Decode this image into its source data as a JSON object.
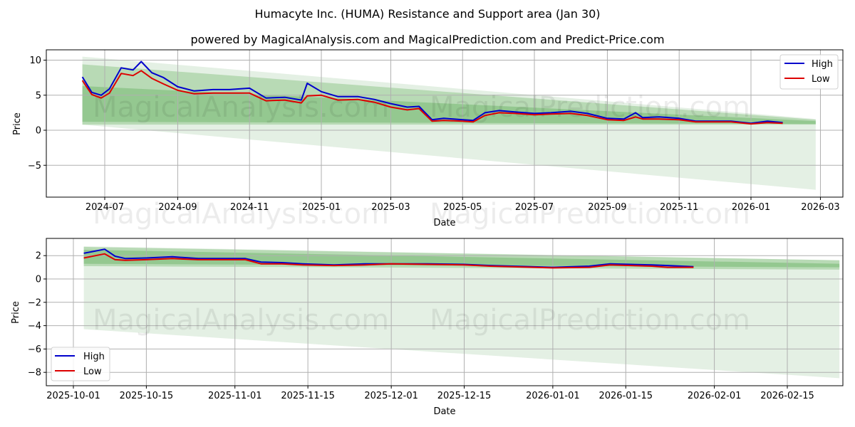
{
  "header": {
    "title": "Humacyte Inc. (HUMA) Resistance and Support area (Jan 30)",
    "subtitle": "powered by MagicalAnalysis.com and MagicalPrediction.com and Predict-Price.com"
  },
  "watermarks": [
    "MagicalAnalysis.com",
    "MagicalPrediction.com"
  ],
  "colors": {
    "high": "#0000cc",
    "low": "#dd0000",
    "band_light": "#e3efe3",
    "band_mid": "#a9d3a6",
    "band_dark": "#7bbd78",
    "grid": "#b0b0b0"
  },
  "chart_data": [
    {
      "type": "line",
      "title": "Humacyte Inc. (HUMA) Resistance and Support area (Jan 30)",
      "subtitle": "powered by MagicalAnalysis.com and MagicalPrediction.com and Predict-Price.com",
      "xlabel": "Date",
      "ylabel": "Price",
      "ylim": [
        -9.5,
        11.5
      ],
      "yticks": [
        10,
        5,
        0,
        -5
      ],
      "ytick_labels": [
        "10",
        "5",
        "0",
        "−5"
      ],
      "xticks": [
        "2024-07",
        "2024-09",
        "2024-11",
        "2025-01",
        "2025-03",
        "2025-05",
        "2025-07",
        "2025-09",
        "2025-11",
        "2026-01",
        "2026-03"
      ],
      "grid": true,
      "legend": {
        "position": "upper right",
        "entries": [
          "High",
          "Low"
        ]
      },
      "x": [
        "2024-06-12",
        "2024-06-20",
        "2024-06-28",
        "2024-07-05",
        "2024-07-15",
        "2024-07-25",
        "2024-08-01",
        "2024-08-10",
        "2024-08-20",
        "2024-09-01",
        "2024-09-15",
        "2024-10-01",
        "2024-10-15",
        "2024-11-01",
        "2024-11-15",
        "2024-12-01",
        "2024-12-15",
        "2024-12-20",
        "2025-01-01",
        "2025-01-15",
        "2025-02-01",
        "2025-02-15",
        "2025-03-01",
        "2025-03-15",
        "2025-03-25",
        "2025-04-05",
        "2025-04-15",
        "2025-05-01",
        "2025-05-10",
        "2025-05-20",
        "2025-06-01",
        "2025-06-15",
        "2025-07-01",
        "2025-07-15",
        "2025-08-01",
        "2025-08-15",
        "2025-09-01",
        "2025-09-15",
        "2025-09-25",
        "2025-10-01",
        "2025-10-15",
        "2025-11-01",
        "2025-11-15",
        "2025-12-01",
        "2025-12-15",
        "2026-01-01",
        "2026-01-15",
        "2026-01-28"
      ],
      "series": [
        {
          "name": "High",
          "color": "#0000cc",
          "values": [
            7.6,
            5.4,
            5.0,
            5.9,
            8.9,
            8.6,
            9.8,
            8.2,
            7.5,
            6.2,
            5.6,
            5.8,
            5.8,
            6.0,
            4.6,
            4.7,
            4.3,
            6.7,
            5.5,
            4.8,
            4.8,
            4.4,
            3.8,
            3.3,
            3.4,
            1.5,
            1.7,
            1.5,
            1.4,
            2.5,
            2.8,
            2.6,
            2.4,
            2.5,
            2.7,
            2.4,
            1.7,
            1.6,
            2.5,
            1.8,
            1.9,
            1.7,
            1.3,
            1.3,
            1.3,
            1.0,
            1.3,
            1.1
          ]
        },
        {
          "name": "Low",
          "color": "#dd0000",
          "values": [
            7.1,
            5.1,
            4.6,
            5.3,
            8.1,
            7.8,
            8.5,
            7.4,
            6.6,
            5.7,
            5.2,
            5.3,
            5.3,
            5.3,
            4.2,
            4.3,
            3.9,
            4.9,
            5.0,
            4.3,
            4.4,
            4.0,
            3.3,
            2.9,
            3.1,
            1.3,
            1.4,
            1.3,
            1.2,
            2.1,
            2.5,
            2.4,
            2.2,
            2.3,
            2.4,
            2.1,
            1.5,
            1.4,
            1.9,
            1.6,
            1.6,
            1.5,
            1.2,
            1.2,
            1.2,
            0.9,
            1.1,
            1.0
          ]
        }
      ],
      "bands": [
        {
          "name": "outer-light",
          "start": {
            "x": "2024-06-12",
            "upper": 10.5,
            "lower": 0.8
          },
          "end": {
            "x": "2026-02-25",
            "upper": 1.6,
            "lower": -8.5
          }
        },
        {
          "name": "mid",
          "start": {
            "x": "2024-06-12",
            "upper": 9.4,
            "lower": 0.8
          },
          "end": {
            "x": "2026-02-25",
            "upper": 1.5,
            "lower": 0.8
          }
        },
        {
          "name": "inner-dark",
          "start": {
            "x": "2024-06-12",
            "upper": 6.3,
            "lower": 1.2
          },
          "end": {
            "x": "2026-02-25",
            "upper": 1.3,
            "lower": 0.9
          }
        }
      ]
    },
    {
      "type": "line",
      "xlabel": "Date",
      "ylabel": "Price",
      "ylim": [
        -9.1,
        3.4
      ],
      "yticks": [
        2,
        0,
        -2,
        -4,
        -6,
        -8
      ],
      "ytick_labels": [
        "2",
        "0",
        "−2",
        "−4",
        "−6",
        "−8"
      ],
      "xticks": [
        "2025-10-01",
        "2025-10-15",
        "2025-11-01",
        "2025-11-15",
        "2025-12-01",
        "2025-12-15",
        "2026-01-01",
        "2026-01-15",
        "2026-02-01",
        "2026-02-15"
      ],
      "grid": true,
      "legend": {
        "position": "lower left",
        "entries": [
          "High",
          "Low"
        ]
      },
      "x": [
        "2025-10-03",
        "2025-10-07",
        "2025-10-09",
        "2025-10-11",
        "2025-10-15",
        "2025-10-20",
        "2025-10-25",
        "2025-10-30",
        "2025-11-03",
        "2025-11-06",
        "2025-11-10",
        "2025-11-14",
        "2025-11-20",
        "2025-11-26",
        "2025-12-01",
        "2025-12-08",
        "2025-12-15",
        "2025-12-20",
        "2026-01-01",
        "2026-01-08",
        "2026-01-12",
        "2026-01-20",
        "2026-01-23",
        "2026-01-28"
      ],
      "series": [
        {
          "name": "High",
          "color": "#0000cc",
          "values": [
            2.2,
            2.55,
            1.95,
            1.75,
            1.8,
            1.9,
            1.75,
            1.75,
            1.75,
            1.45,
            1.4,
            1.3,
            1.2,
            1.3,
            1.3,
            1.3,
            1.25,
            1.15,
            1.0,
            1.1,
            1.3,
            1.2,
            1.15,
            1.05
          ]
        },
        {
          "name": "Low",
          "color": "#dd0000",
          "values": [
            1.8,
            2.15,
            1.65,
            1.6,
            1.65,
            1.75,
            1.65,
            1.65,
            1.65,
            1.3,
            1.3,
            1.2,
            1.15,
            1.2,
            1.3,
            1.25,
            1.2,
            1.1,
            0.95,
            1.0,
            1.2,
            1.1,
            1.0,
            1.0
          ]
        }
      ],
      "bands": [
        {
          "name": "outer-light",
          "start": {
            "x": "2025-10-03",
            "upper": 2.8,
            "lower": -4.3
          },
          "end": {
            "x": "2026-02-25",
            "upper": 1.6,
            "lower": -8.5
          }
        },
        {
          "name": "mid",
          "start": {
            "x": "2025-10-03",
            "upper": 2.75,
            "lower": 1.1
          },
          "end": {
            "x": "2026-02-25",
            "upper": 1.6,
            "lower": 0.8
          }
        },
        {
          "name": "inner-dark",
          "start": {
            "x": "2025-10-03",
            "upper": 2.5,
            "lower": 1.3
          },
          "end": {
            "x": "2026-02-25",
            "upper": 1.3,
            "lower": 1.0
          }
        }
      ]
    }
  ]
}
